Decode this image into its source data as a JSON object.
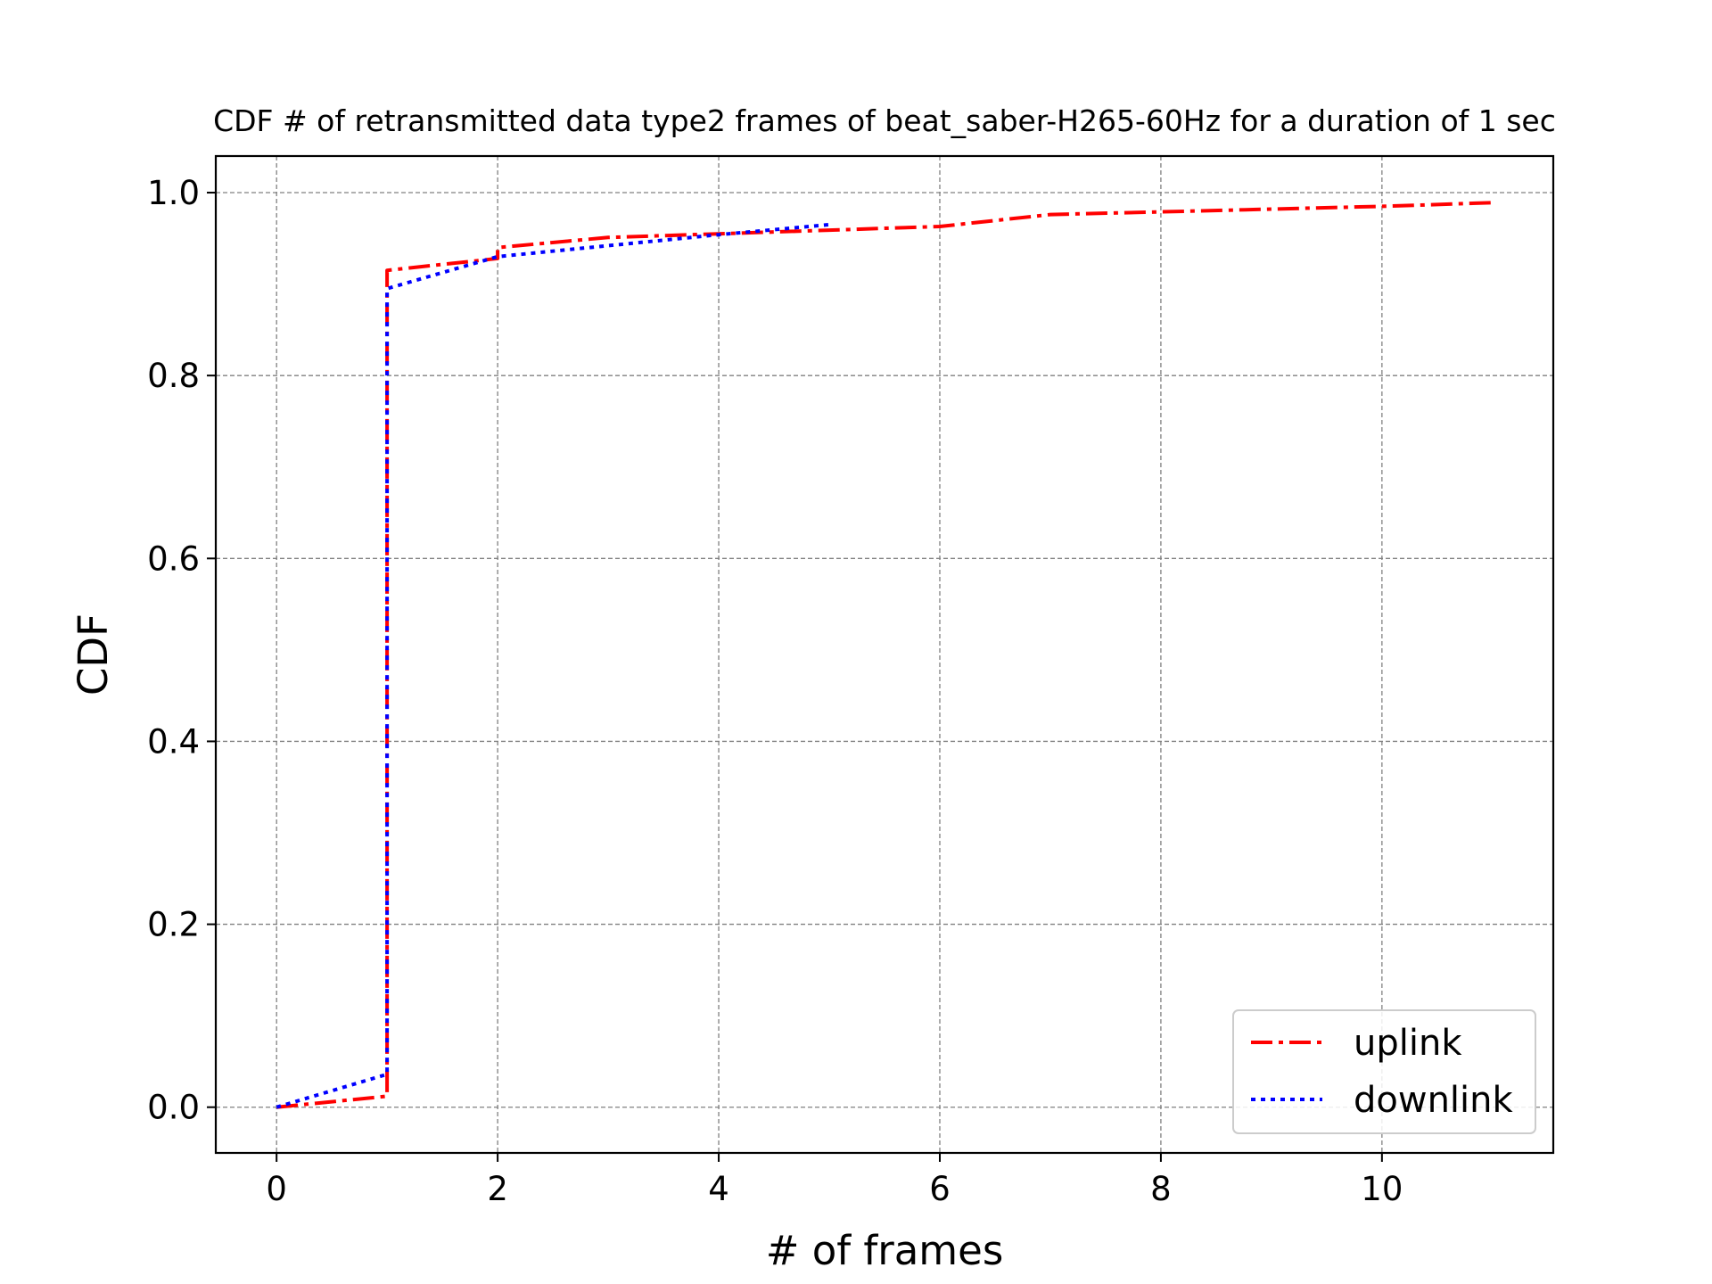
{
  "chart_data": {
    "type": "line",
    "title": "CDF # of retransmitted data type2 frames of beat_saber-H265-60Hz for a duration of 1 sec",
    "xlabel": "# of frames",
    "ylabel": "CDF",
    "xlim": [
      -0.55,
      11.55
    ],
    "ylim": [
      -0.05,
      1.04
    ],
    "xticks": [
      0,
      2,
      4,
      6,
      8,
      10
    ],
    "xtick_labels": [
      "0",
      "2",
      "4",
      "6",
      "8",
      "10"
    ],
    "yticks": [
      0.0,
      0.2,
      0.4,
      0.6,
      0.8,
      1.0
    ],
    "ytick_labels": [
      "0.0",
      "0.2",
      "0.4",
      "0.6",
      "0.8",
      "1.0"
    ],
    "grid": true,
    "legend": "lower-right",
    "series": [
      {
        "name": "uplink",
        "color": "#ff0000",
        "style": "dashdot",
        "x": [
          0,
          1,
          1,
          2,
          2,
          3,
          4,
          5,
          6,
          7,
          8,
          9,
          10,
          11
        ],
        "y": [
          0.0,
          0.012,
          0.915,
          0.928,
          0.94,
          0.951,
          0.955,
          0.959,
          0.963,
          0.976,
          0.979,
          0.982,
          0.985,
          0.989
        ]
      },
      {
        "name": "downlink",
        "color": "#0000ff",
        "style": "dotted",
        "x": [
          0,
          1,
          1,
          2,
          3,
          4,
          5
        ],
        "y": [
          0.0,
          0.036,
          0.895,
          0.93,
          0.942,
          0.954,
          0.965
        ]
      }
    ]
  }
}
